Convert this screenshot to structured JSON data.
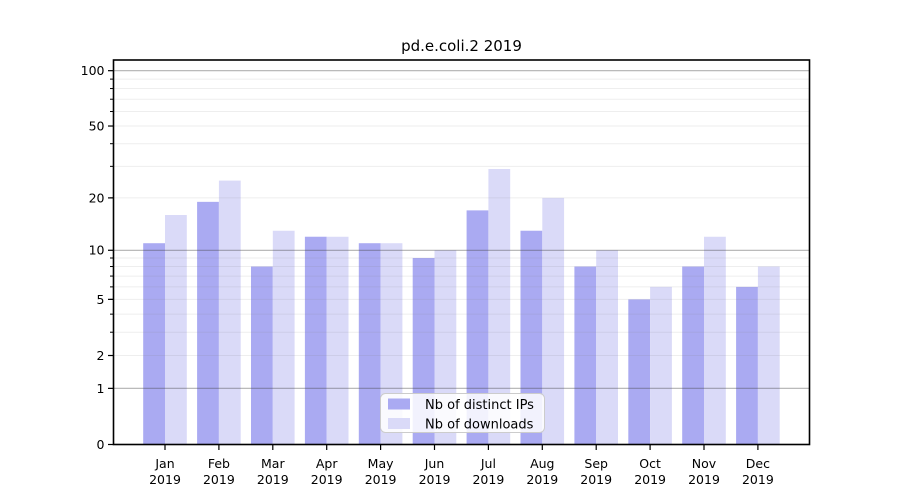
{
  "chart_data": {
    "type": "bar",
    "title": "pd.e.coli.2 2019",
    "x_tick_months": [
      "Jan",
      "Feb",
      "Mar",
      "Apr",
      "May",
      "Jun",
      "Jul",
      "Aug",
      "Sep",
      "Oct",
      "Nov",
      "Dec"
    ],
    "x_tick_year": "2019",
    "series": [
      {
        "name": "Nb of distinct IPs",
        "key": "distinct-ips",
        "color": "#aaaaf2",
        "values": [
          11,
          19,
          8,
          12,
          11,
          9,
          17,
          13,
          8,
          5,
          8,
          6
        ]
      },
      {
        "name": "Nb of downloads",
        "key": "downloads",
        "color": "#dadaf8",
        "values": [
          16,
          25,
          13,
          12,
          11,
          10,
          29,
          20,
          10,
          6,
          12,
          8
        ]
      }
    ],
    "y_axis": {
      "scale": "log1p",
      "ticks": [
        0,
        1,
        2,
        5,
        10,
        20,
        50,
        100
      ],
      "limits": [
        0,
        115
      ],
      "major_gridlines": [
        1,
        10,
        100
      ],
      "minor_gridlines": [
        2,
        3,
        4,
        5,
        6,
        7,
        8,
        9,
        20,
        30,
        40,
        50,
        60,
        70,
        80,
        90
      ]
    },
    "legend": {
      "position": "lower center inside",
      "entries": [
        "Nb of distinct IPs",
        "Nb of downloads"
      ]
    }
  },
  "colors": {
    "background": "#ffffff",
    "axis": "#000000",
    "major_grid": "rgba(70,70,70,0.42)",
    "minor_grid": "rgba(120,120,120,0.13)",
    "legend_border": "#cccccc",
    "legend_bg": "rgba(255,255,255,0.85)"
  }
}
